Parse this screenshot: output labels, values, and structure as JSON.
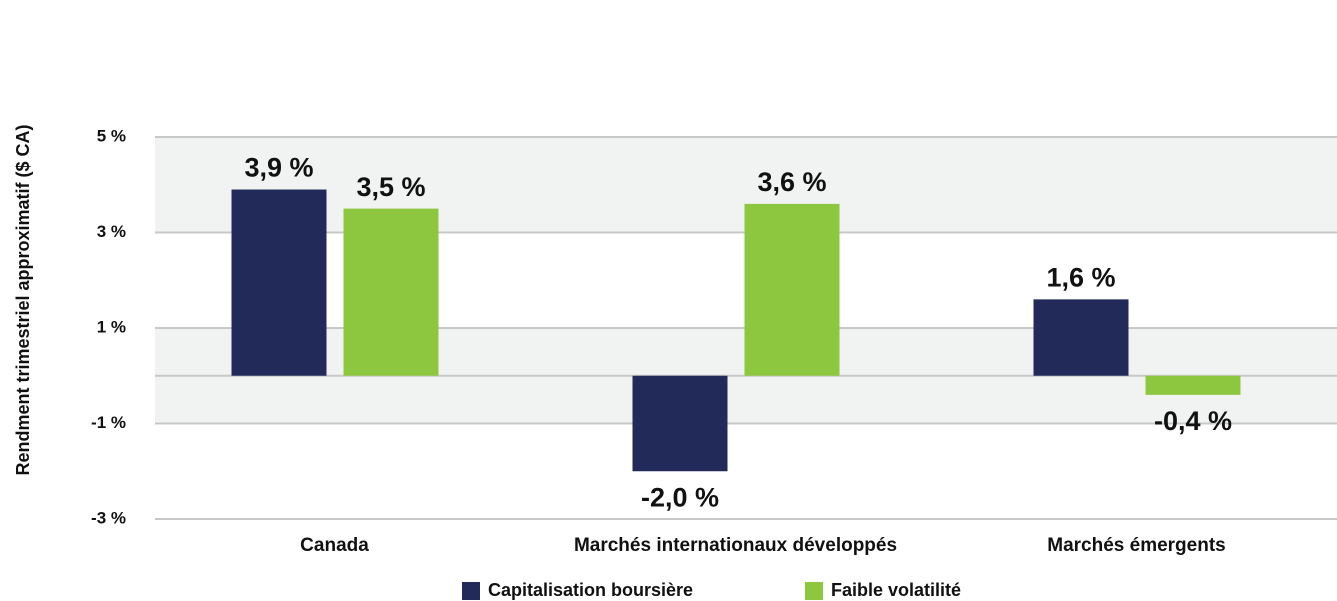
{
  "chart_data": {
    "type": "bar",
    "y_label": "Rendment trimestriel approximatif ($ CA)",
    "categories": [
      "Canada",
      "Marchés internationaux développés",
      "Marchés émergents"
    ],
    "series": [
      {
        "name": "Capitalisation boursière",
        "color": "#222a5a",
        "values": [
          3.9,
          -2.0,
          1.6
        ],
        "value_labels": [
          "3,9 %",
          "-2,0 %",
          "1,6 %"
        ]
      },
      {
        "name": "Faible volatilité",
        "color": "#8dc63f",
        "values": [
          3.5,
          3.6,
          -0.4
        ],
        "value_labels": [
          "3,5 %",
          "3,6 %",
          "-0,4 %"
        ]
      }
    ],
    "ylim": [
      -3,
      5
    ],
    "yticks": [
      {
        "value": -3,
        "label": "-3 %"
      },
      {
        "value": -1,
        "label": "-1 %"
      },
      {
        "value": 1,
        "label": "1 %"
      },
      {
        "value": 3,
        "label": "3 %"
      },
      {
        "value": 5,
        "label": "5 %"
      }
    ],
    "grid": true,
    "legend": "bottom"
  }
}
